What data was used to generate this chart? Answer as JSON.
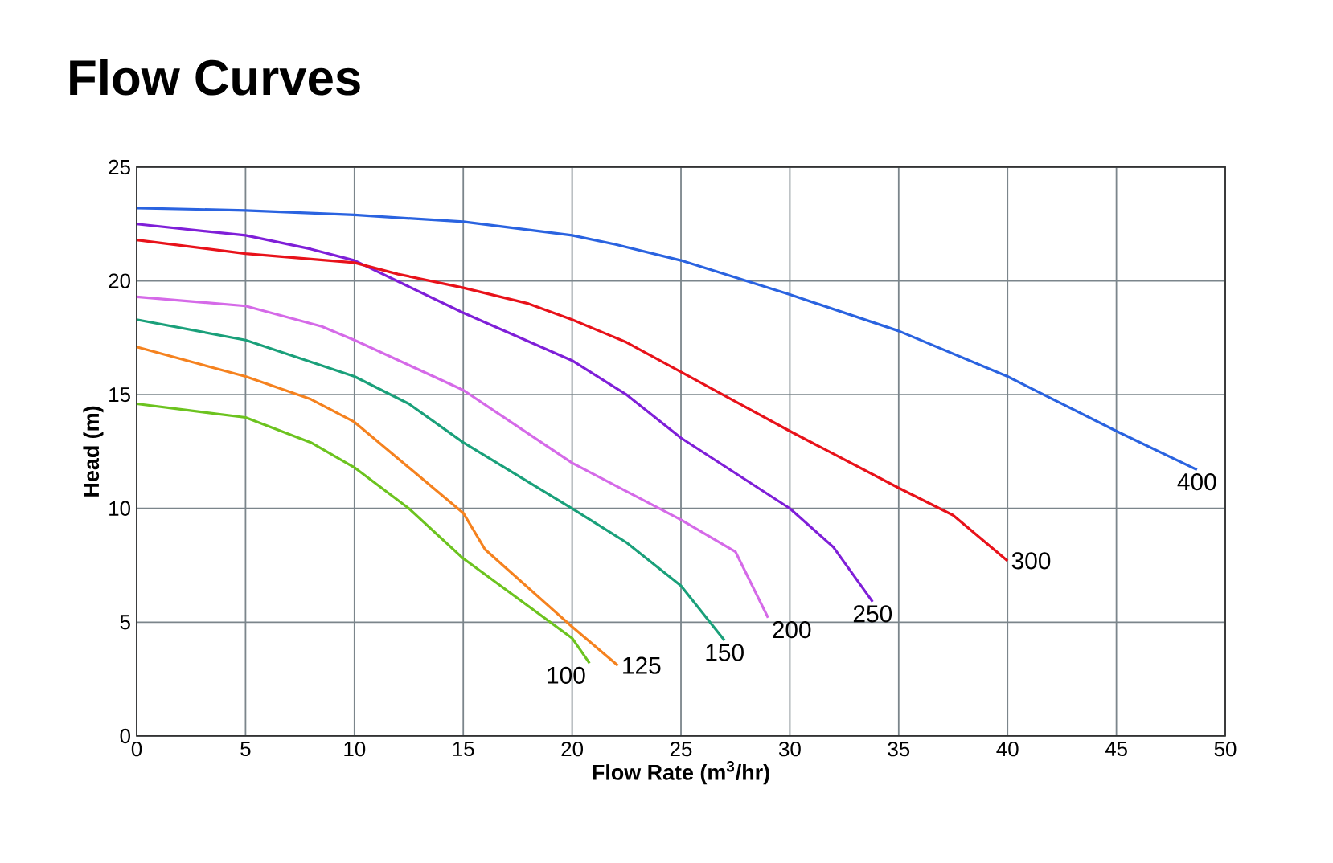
{
  "chart_data": {
    "type": "line",
    "title": "Flow Curves",
    "xlabel": "Flow Rate (m$^{3}$/hr)",
    "ylabel": "Head (m)",
    "xlim": [
      0,
      50
    ],
    "ylim": [
      0,
      25
    ],
    "xticks": [
      0,
      5,
      10,
      15,
      20,
      25,
      30,
      35,
      40,
      45,
      50
    ],
    "yticks": [
      0,
      5,
      10,
      15,
      20,
      25
    ],
    "grid": true,
    "legend": false,
    "marker": "none",
    "line_style": "solid",
    "series": [
      {
        "name": "100",
        "color": "#6cc31f",
        "x": [
          0,
          5,
          8,
          10,
          12.5,
          15,
          20,
          20.8
        ],
        "values": [
          14.6,
          14.0,
          12.9,
          11.8,
          10.0,
          7.8,
          4.3,
          3.2
        ]
      },
      {
        "name": "125",
        "color": "#f5821f",
        "x": [
          0,
          5,
          8,
          10,
          15,
          16,
          20,
          22.1
        ],
        "values": [
          17.1,
          15.8,
          14.8,
          13.8,
          9.8,
          8.2,
          4.8,
          3.1
        ]
      },
      {
        "name": "150",
        "color": "#1aa07a",
        "x": [
          0,
          5,
          10,
          12.5,
          15,
          20,
          22.5,
          25,
          27
        ],
        "values": [
          18.3,
          17.4,
          15.8,
          14.6,
          12.9,
          10.0,
          8.5,
          6.6,
          4.2
        ]
      },
      {
        "name": "200",
        "color": "#d56ae8",
        "x": [
          0,
          5,
          8.5,
          10,
          15,
          20,
          25,
          27.5,
          29
        ],
        "values": [
          19.3,
          18.9,
          18.0,
          17.4,
          15.2,
          12.0,
          9.5,
          8.1,
          5.2
        ]
      },
      {
        "name": "250",
        "color": "#7f1fd8",
        "x": [
          0,
          5,
          8,
          10,
          15,
          20,
          22.5,
          25,
          30,
          32,
          33.8
        ],
        "values": [
          22.5,
          22.0,
          21.4,
          20.9,
          18.6,
          16.5,
          15.0,
          13.1,
          10.0,
          8.3,
          5.9
        ]
      },
      {
        "name": "300",
        "color": "#e8121a",
        "x": [
          0,
          5,
          10,
          12,
          15,
          18,
          20,
          22.5,
          25,
          30,
          35,
          37.5,
          40
        ],
        "values": [
          21.8,
          21.2,
          20.8,
          20.3,
          19.7,
          19.0,
          18.3,
          17.3,
          16.0,
          13.4,
          10.9,
          9.7,
          7.7
        ]
      },
      {
        "name": "400",
        "color": "#2a63e0",
        "x": [
          0,
          5,
          10,
          15,
          20,
          22,
          25,
          30,
          35,
          40,
          45,
          48.7
        ],
        "values": [
          23.2,
          23.1,
          22.9,
          22.6,
          22.0,
          21.6,
          20.9,
          19.4,
          17.8,
          15.8,
          13.4,
          11.7
        ]
      }
    ]
  }
}
